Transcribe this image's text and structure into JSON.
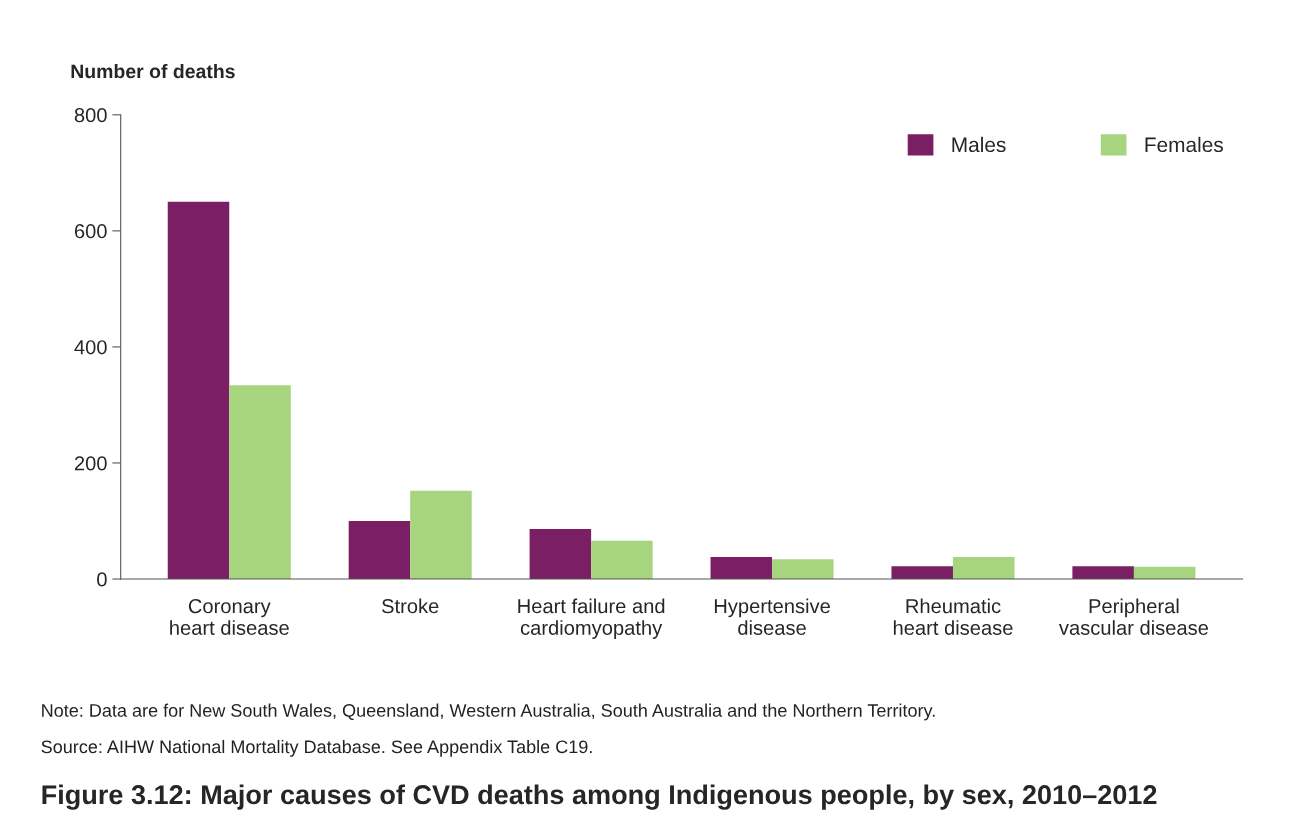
{
  "chart_data": {
    "type": "bar",
    "title": "Figure 3.12: Major causes of CVD deaths among Indigenous people, by sex, 2010–2012",
    "ylabel": "Number of deaths",
    "categories": [
      "Coronary\nheart disease",
      "Stroke",
      "Heart failure and\ncardiomyopathy",
      "Hypertensive\ndisease",
      "Rheumatic\nheart disease",
      "Peripheral\nvascular disease"
    ],
    "series": [
      {
        "name": "Males",
        "color": "#7a1f63",
        "values": [
          650,
          100,
          86,
          38,
          22,
          22
        ]
      },
      {
        "name": "Females",
        "color": "#a7d47f",
        "values": [
          334,
          152,
          66,
          34,
          38,
          21
        ]
      }
    ],
    "ylim": [
      0,
      800
    ],
    "yticks": [
      0,
      200,
      400,
      600,
      800
    ],
    "grid": false,
    "legend": "top right",
    "annotations": [
      "Note: Data are for New South Wales, Queensland, Western Australia, South Australia and the Northern Territory.",
      "Source: AIHW National Mortality Database. See Appendix Table C19."
    ]
  }
}
